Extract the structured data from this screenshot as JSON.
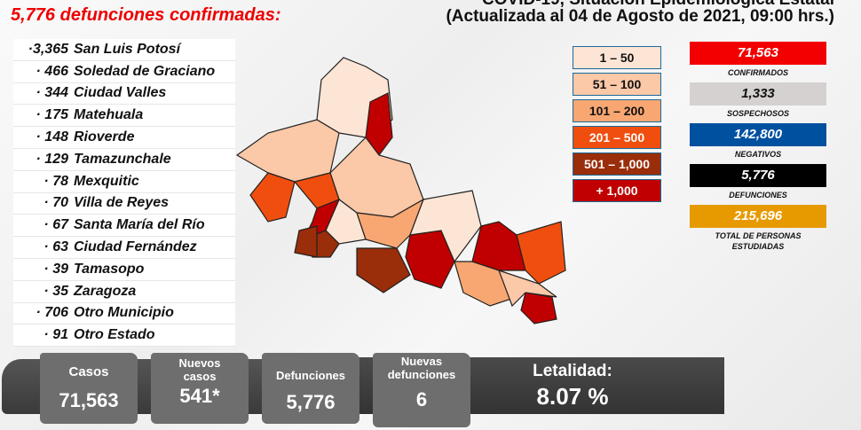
{
  "header": {
    "title": "COVID-19, Situación Epidemiológica Estatal",
    "subtitle": "(Actualizada al 04 de Agosto de 2021, 09:00 hrs.)"
  },
  "deaths_title": "5,776 defunciones confirmadas:",
  "municipalities": [
    {
      "count": "·3,365",
      "name": "San Luis Potosí"
    },
    {
      "count": "· 466",
      "name": "Soledad de Graciano"
    },
    {
      "count": "· 344",
      "name": "Ciudad Valles"
    },
    {
      "count": "· 175",
      "name": "Matehuala"
    },
    {
      "count": "· 148",
      "name": "Rioverde"
    },
    {
      "count": "· 129",
      "name": "Tamazunchale"
    },
    {
      "count": "· 78",
      "name": "Mexquitic"
    },
    {
      "count": "· 70",
      "name": "Villa de Reyes"
    },
    {
      "count": "· 67",
      "name": "Santa María del Río"
    },
    {
      "count": "· 63",
      "name": "Ciudad Fernández"
    },
    {
      "count": "· 39",
      "name": "Tamasopo"
    },
    {
      "count": "· 35",
      "name": "Zaragoza"
    },
    {
      "count": "· 706",
      "name": "Otro Municipio"
    },
    {
      "count": "· 91",
      "name": "Otro Estado"
    }
  ],
  "legend": [
    {
      "label": "1 – 50",
      "color": "#fde5d6",
      "text": "#111"
    },
    {
      "label": "51 – 100",
      "color": "#fbc8a8",
      "text": "#111"
    },
    {
      "label": "101 – 200",
      "color": "#f8a772",
      "text": "#111"
    },
    {
      "label": "201 – 500",
      "color": "#f04e0f",
      "text": "#fff"
    },
    {
      "label": "501 – 1,000",
      "color": "#9a2d0a",
      "text": "#fff"
    },
    {
      "label": "+ 1,000",
      "color": "#c00000",
      "text": "#fff"
    }
  ],
  "stats": [
    {
      "value": "71,563",
      "label": "CONFIRMADOS",
      "color": "#f20000",
      "text": "#fff"
    },
    {
      "value": "1,333",
      "label": "SOSPECHOSOS",
      "color": "#d4d1d0",
      "text": "#111"
    },
    {
      "value": "142,800",
      "label": "NEGATIVOS",
      "color": "#0050a0",
      "text": "#fff"
    },
    {
      "value": "5,776",
      "label": "DEFUNCIONES",
      "color": "#000000",
      "text": "#fff"
    },
    {
      "value": "215,696",
      "label": "TOTAL DE PERSONAS ESTUDIADAS",
      "color": "#e69a00",
      "text": "#fff"
    }
  ],
  "summary": {
    "casos_label": "Casos",
    "casos": "71,563",
    "nuevos_label": "Nuevos casos",
    "nuevos": "541*",
    "def_label": "Defunciones",
    "def": "5,776",
    "nuevas_def_label": "Nuevas defunciones",
    "nuevas_def": "6",
    "letalidad_label": "Letalidad:",
    "letalidad": "8.07 %"
  }
}
